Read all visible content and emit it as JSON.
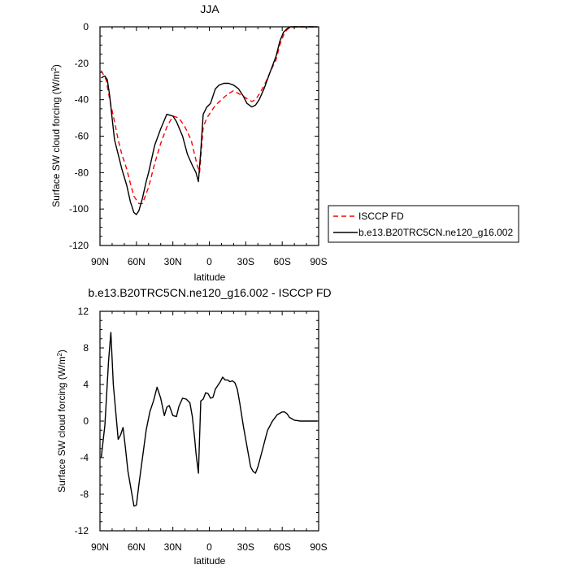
{
  "chart_data": [
    {
      "type": "line",
      "title": "JJA",
      "xlabel": "latitude",
      "ylabel": "Surface SW cloud forcing (W/m",
      "ylabel_sup": "2",
      "ylabel_tail": ")",
      "xlim": [
        90,
        -90
      ],
      "ylim": [
        -120,
        0
      ],
      "x_ticks": [
        90,
        60,
        30,
        0,
        -30,
        -60,
        -90
      ],
      "x_tick_labels": [
        "90N",
        "60N",
        "30N",
        "0",
        "30S",
        "60S",
        "90S"
      ],
      "y_ticks": [
        0,
        -20,
        -40,
        -60,
        -80,
        -100,
        -120
      ],
      "y_tick_labels": [
        "0",
        "-20",
        "-40",
        "-60",
        "-80",
        "-100",
        "-120"
      ],
      "legend_position": "right",
      "series": [
        {
          "name": "ISCCP FD",
          "color": "#ff0000",
          "dash": "dashed",
          "x": [
            89,
            85,
            82,
            78,
            75,
            72,
            68,
            65,
            62,
            58,
            55,
            50,
            45,
            40,
            35,
            30,
            25,
            20,
            15,
            10,
            8,
            5,
            2,
            0,
            -5,
            -10,
            -15,
            -20,
            -25,
            -30,
            -35,
            -38,
            -42,
            -46,
            -50,
            -55,
            -58,
            -62,
            -65,
            -70,
            -75,
            -80,
            -85,
            -89
          ],
          "y": [
            -24,
            -29,
            -40,
            -52,
            -62,
            -70,
            -78,
            -86,
            -93,
            -97,
            -97,
            -88,
            -75,
            -64,
            -55,
            -49,
            -50,
            -55,
            -62,
            -76,
            -80,
            -55,
            -50,
            -48,
            -43,
            -40,
            -37,
            -35,
            -37,
            -39,
            -41,
            -40,
            -36,
            -31,
            -25,
            -18,
            -10,
            -3,
            -1,
            0,
            0,
            0,
            0,
            0
          ]
        },
        {
          "name": "b.e13.B20TRC5CN.ne120_g16.002",
          "color": "#000000",
          "dash": "solid",
          "x": [
            89,
            86,
            84,
            82,
            80,
            78,
            75,
            72,
            68,
            65,
            62,
            60,
            58,
            55,
            52,
            50,
            45,
            40,
            35,
            30,
            27,
            22,
            18,
            14,
            11,
            9,
            7,
            5,
            2,
            -1,
            -5,
            -8,
            -12,
            -16,
            -20,
            -24,
            -28,
            -31,
            -35,
            -38,
            -41,
            -45,
            -50,
            -55,
            -58,
            -61,
            -64,
            -67,
            -70,
            -75,
            -80,
            -85,
            -89
          ],
          "y": [
            -28,
            -27,
            -29,
            -38,
            -50,
            -62,
            -70,
            -78,
            -87,
            -96,
            -102,
            -103,
            -101,
            -94,
            -85,
            -80,
            -65,
            -56,
            -48,
            -49,
            -52,
            -60,
            -70,
            -76,
            -80,
            -85,
            -68,
            -48,
            -44,
            -42,
            -34,
            -32,
            -31,
            -31,
            -32,
            -34,
            -38,
            -42,
            -44,
            -43,
            -40,
            -34,
            -25,
            -16,
            -8,
            -3,
            -1,
            0,
            0,
            0,
            0,
            0,
            0
          ]
        }
      ]
    },
    {
      "type": "line",
      "title": "b.e13.B20TRC5CN.ne120_g16.002 - ISCCP FD",
      "xlabel": "latitude",
      "ylabel": "Surface SW cloud forcing (W/m",
      "ylabel_sup": "2",
      "ylabel_tail": ")",
      "xlim": [
        90,
        -90
      ],
      "ylim": [
        -12,
        12
      ],
      "x_ticks": [
        90,
        60,
        30,
        0,
        -30,
        -60,
        -90
      ],
      "x_tick_labels": [
        "90N",
        "60N",
        "30N",
        "0",
        "30S",
        "60S",
        "90S"
      ],
      "y_ticks": [
        12,
        8,
        4,
        0,
        -4,
        -8,
        -12
      ],
      "y_tick_labels": [
        "12",
        "8",
        "4",
        "0",
        "-4",
        "-8",
        "-12"
      ],
      "series": [
        {
          "color": "#000000",
          "dash": "solid",
          "x": [
            89,
            86,
            83,
            81,
            79,
            77,
            75,
            73,
            71,
            69,
            67,
            64,
            62,
            60,
            58,
            55,
            52,
            49,
            46,
            43,
            40,
            37,
            35,
            33,
            30,
            27,
            25,
            22,
            19,
            16,
            14,
            12,
            11,
            9,
            7,
            5,
            3,
            1,
            -1,
            -3,
            -5,
            -7,
            -9,
            -11,
            -13,
            -15,
            -17,
            -19,
            -21,
            -23,
            -25,
            -28,
            -30,
            -32,
            -34,
            -36,
            -38,
            -40,
            -42,
            -44,
            -46,
            -48,
            -52,
            -56,
            -60,
            -62,
            -64,
            -66,
            -70,
            -75,
            -80,
            -85,
            -89
          ],
          "y": [
            -4,
            -0.5,
            6.5,
            9.7,
            4,
            1,
            -2,
            -1.5,
            -0.7,
            -3,
            -5.5,
            -7.8,
            -9.3,
            -9.2,
            -7,
            -4,
            -1,
            1,
            2.2,
            3.7,
            2.5,
            0.6,
            1.5,
            1.7,
            0.6,
            0.5,
            1.6,
            2.5,
            2.4,
            2,
            0.5,
            -2,
            -3.5,
            -5.7,
            2.2,
            2.4,
            3.1,
            3,
            2.5,
            2.6,
            3.5,
            3.9,
            4.3,
            4.8,
            4.5,
            4.5,
            4.3,
            4.4,
            4.2,
            3.5,
            2,
            -0.5,
            -2,
            -3.5,
            -5,
            -5.5,
            -5.7,
            -5,
            -4,
            -3,
            -2,
            -1,
            0,
            0.7,
            1,
            1,
            0.8,
            0.4,
            0.1,
            0,
            0,
            0,
            0
          ]
        }
      ]
    }
  ]
}
